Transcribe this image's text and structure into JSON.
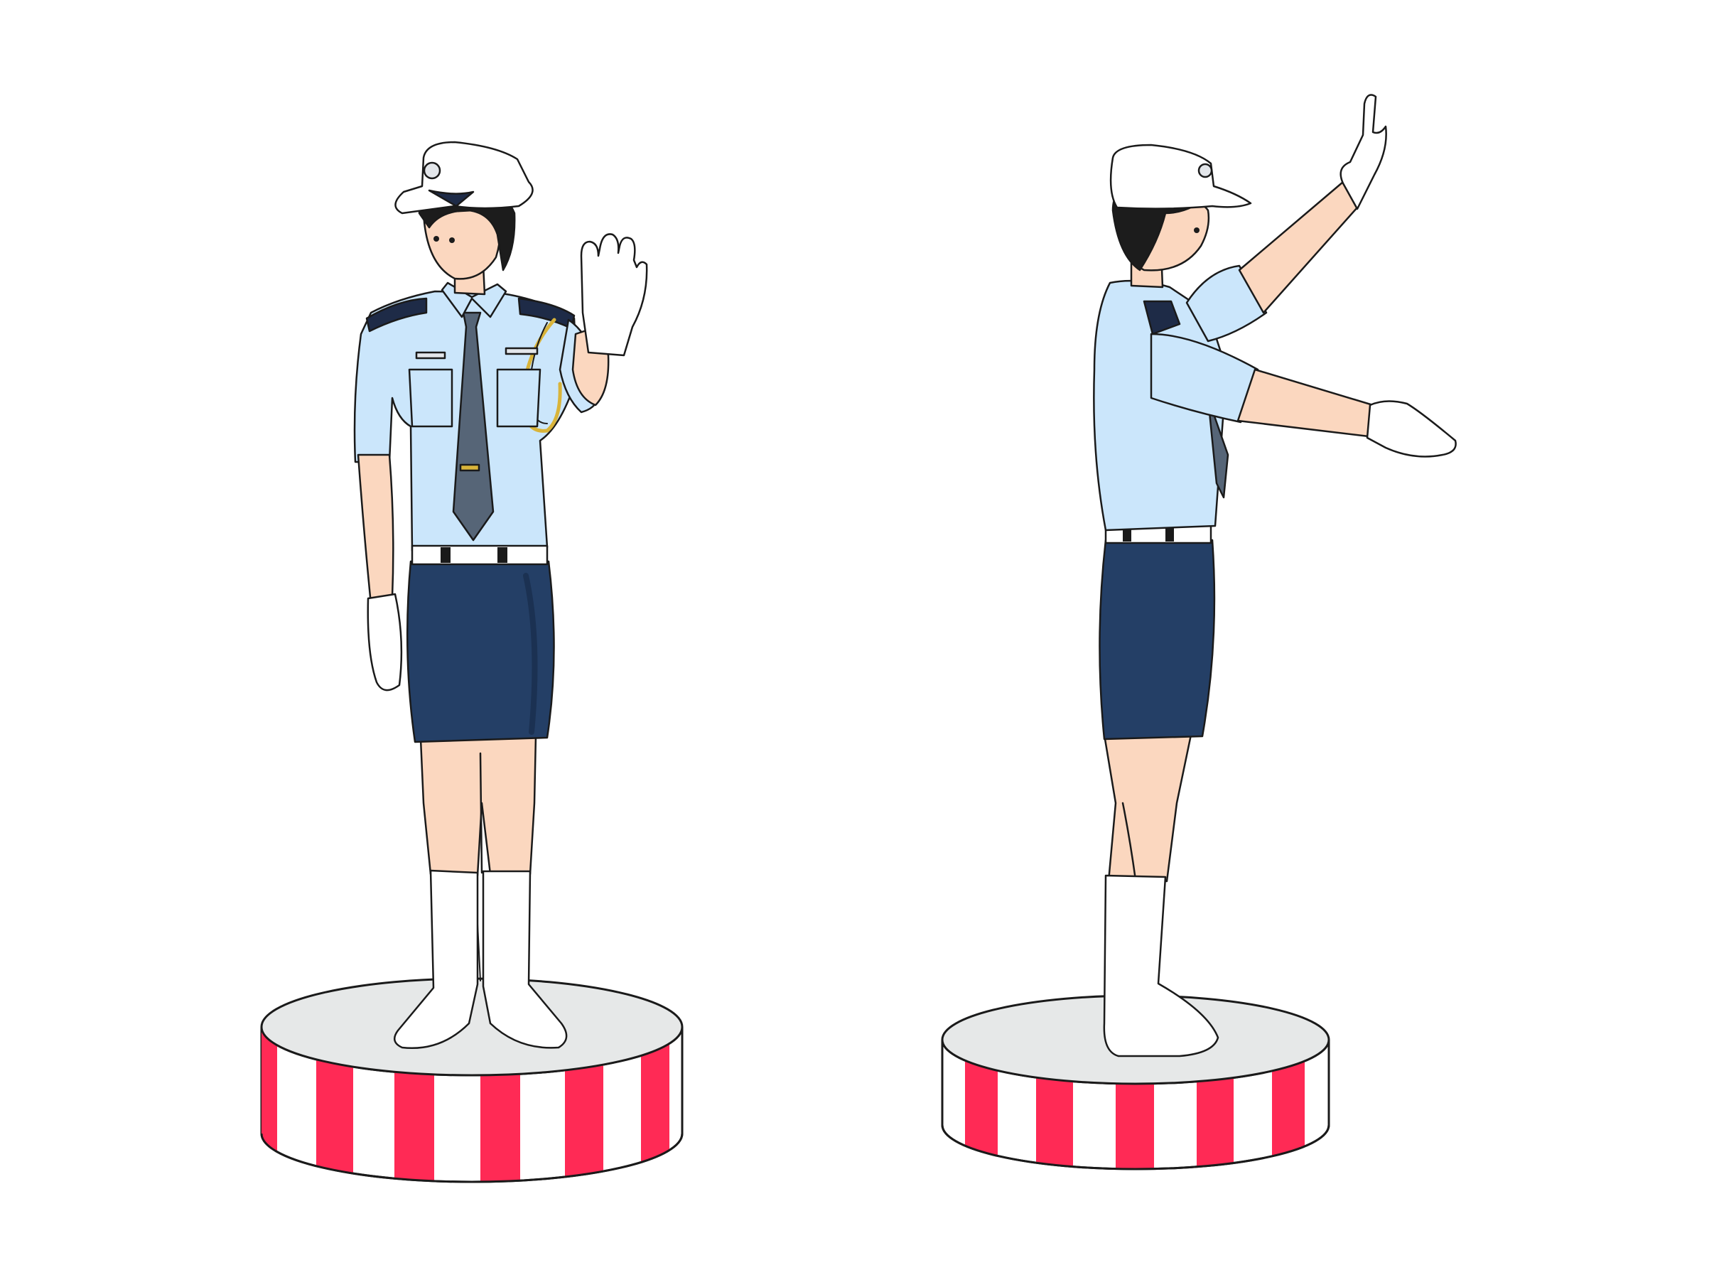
{
  "scene": {
    "subject": "traffic-police-hand-signals",
    "figures": [
      {
        "pose": "front-facing-right-hand-raised-stop"
      },
      {
        "pose": "side-view-arms-extended-direct"
      }
    ]
  },
  "colors": {
    "background": "#ffffff",
    "outline": "#1a1a1a",
    "shirt": "#cbe6fb",
    "shirt_shadow": "#a9cdee",
    "skirt": "#243f66",
    "skirt_shadow": "#1b3152",
    "tie": "#566577",
    "skin": "#fbd7bf",
    "skin_shadow": "#f0bd9e",
    "hair": "#1c1c1c",
    "white_gear": "#ffffff",
    "gear_shadow": "#e3e6ea",
    "epaulette": "#1e2b47",
    "aiguillette": "#d9b43a",
    "platform_top": "#e6e8e8",
    "platform_stripe_red": "#ff2a55",
    "platform_stripe_white": "#ffffff"
  }
}
